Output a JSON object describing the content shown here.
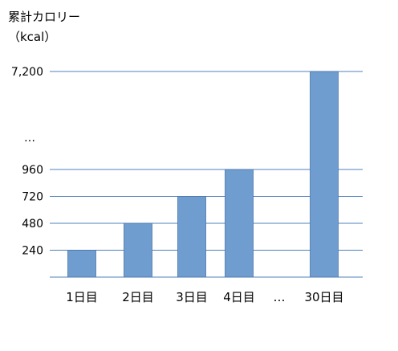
{
  "chart_data": {
    "type": "bar",
    "title": "",
    "ylabel": "累計カロリー",
    "yunit": "（kcal）",
    "xlabel": "",
    "categories": [
      "1日目",
      "2日目",
      "3日目",
      "4日目",
      "…",
      "30日目"
    ],
    "values": [
      240,
      480,
      720,
      960,
      null,
      7200
    ],
    "yticks": [
      {
        "label": "7,200",
        "value": 7200
      },
      {
        "label": "…",
        "value": null
      },
      {
        "label": "960",
        "value": 960
      },
      {
        "label": "720",
        "value": 720
      },
      {
        "label": "480",
        "value": 480
      },
      {
        "label": "240",
        "value": 240
      }
    ],
    "axis_break": true,
    "grid": true,
    "legend": "none",
    "colors": {
      "bar": "#6f9dd0",
      "bar_edge": "#4a76a8",
      "grid": "#4f81bd"
    }
  }
}
